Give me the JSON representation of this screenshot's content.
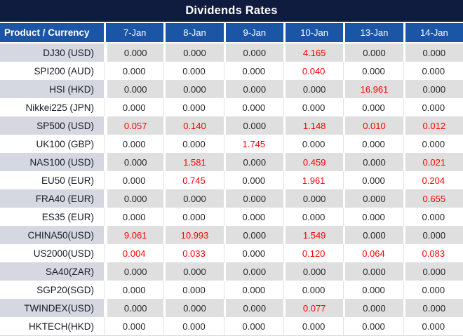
{
  "title": "Dividends Rates",
  "header": {
    "product_col": "Product / Currency",
    "dates": [
      "7-Jan",
      "8-Jan",
      "9-Jan",
      "10-Jan",
      "13-Jan",
      "14-Jan"
    ]
  },
  "colors": {
    "title_bg": "#101C3F",
    "header_bg": "#1B55A6",
    "header_text": "#FFFFFF",
    "stripe_product_bg": "#D5D8E0",
    "stripe_value_bg": "#DFDFDF",
    "value_text": "#262626",
    "highlight_red": "#FF0000"
  },
  "chart_data": {
    "type": "table",
    "title": "Dividends Rates",
    "columns": [
      "Product / Currency",
      "7-Jan",
      "8-Jan",
      "9-Jan",
      "10-Jan",
      "13-Jan",
      "14-Jan"
    ],
    "rows": [
      {
        "product": "DJ30 (USD)",
        "values": [
          "0.000",
          "0.000",
          "0.000",
          "4.165",
          "0.000",
          "0.000"
        ],
        "red_indices": [
          3
        ]
      },
      {
        "product": "SPI200 (AUD)",
        "values": [
          "0.000",
          "0.000",
          "0.000",
          "0.040",
          "0.000",
          "0.000"
        ],
        "red_indices": [
          3
        ]
      },
      {
        "product": "HSI (HKD)",
        "values": [
          "0.000",
          "0.000",
          "0.000",
          "0.000",
          "16.961",
          "0.000"
        ],
        "red_indices": [
          4
        ]
      },
      {
        "product": "Nikkei225 (JPN)",
        "values": [
          "0.000",
          "0.000",
          "0.000",
          "0.000",
          "0.000",
          "0.000"
        ],
        "red_indices": []
      },
      {
        "product": "SP500 (USD)",
        "values": [
          "0.057",
          "0.140",
          "0.000",
          "1.148",
          "0.010",
          "0.012"
        ],
        "red_indices": [
          0,
          1,
          3,
          4,
          5
        ]
      },
      {
        "product": "UK100 (GBP)",
        "values": [
          "0.000",
          "0.000",
          "1.745",
          "0.000",
          "0.000",
          "0.000"
        ],
        "red_indices": [
          2
        ]
      },
      {
        "product": "NAS100 (USD)",
        "values": [
          "0.000",
          "1.581",
          "0.000",
          "0.459",
          "0.000",
          "0.021"
        ],
        "red_indices": [
          1,
          3,
          5
        ]
      },
      {
        "product": "EU50 (EUR)",
        "values": [
          "0.000",
          "0.745",
          "0.000",
          "1.961",
          "0.000",
          "0.204"
        ],
        "red_indices": [
          1,
          3,
          5
        ]
      },
      {
        "product": "FRA40 (EUR)",
        "values": [
          "0.000",
          "0.000",
          "0.000",
          "0.000",
          "0.000",
          "0.655"
        ],
        "red_indices": [
          5
        ]
      },
      {
        "product": "ES35 (EUR)",
        "values": [
          "0.000",
          "0.000",
          "0.000",
          "0.000",
          "0.000",
          "0.000"
        ],
        "red_indices": []
      },
      {
        "product": "CHINA50(USD)",
        "values": [
          "9.061",
          "10.993",
          "0.000",
          "1.549",
          "0.000",
          "0.000"
        ],
        "red_indices": [
          0,
          1,
          3
        ]
      },
      {
        "product": "US2000(USD)",
        "values": [
          "0.004",
          "0.033",
          "0.000",
          "0.120",
          "0.064",
          "0.083"
        ],
        "red_indices": [
          0,
          1,
          3,
          4,
          5
        ]
      },
      {
        "product": "SA40(ZAR)",
        "values": [
          "0.000",
          "0.000",
          "0.000",
          "0.000",
          "0.000",
          "0.000"
        ],
        "red_indices": []
      },
      {
        "product": "SGP20(SGD)",
        "values": [
          "0.000",
          "0.000",
          "0.000",
          "0.000",
          "0.000",
          "0.000"
        ],
        "red_indices": []
      },
      {
        "product": "TWINDEX(USD)",
        "values": [
          "0.000",
          "0.000",
          "0.000",
          "0.077",
          "0.000",
          "0.000"
        ],
        "red_indices": [
          3
        ]
      },
      {
        "product": "HKTECH(HKD)",
        "values": [
          "0.000",
          "0.000",
          "0.000",
          "0.000",
          "0.000",
          "0.000"
        ],
        "red_indices": []
      }
    ]
  }
}
